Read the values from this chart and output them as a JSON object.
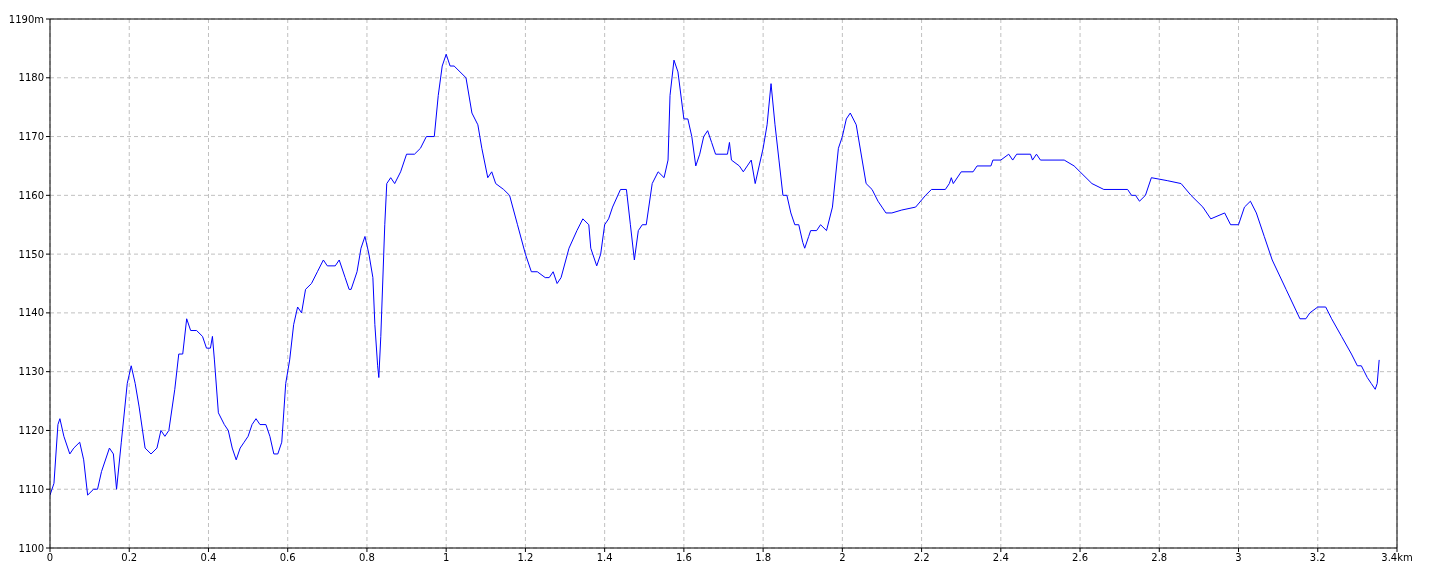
{
  "chart_data": {
    "type": "line",
    "grid": true,
    "line_style": "solid",
    "marker": "none",
    "xlim": [
      0,
      3.4
    ],
    "xticks": [
      0,
      0.2,
      0.4,
      0.6,
      0.8,
      1,
      1.2,
      1.4,
      1.6,
      1.8,
      2,
      2.2,
      2.4,
      2.6,
      2.8,
      3,
      3.2,
      {
        "value": 3.4,
        "label": "3.4km"
      }
    ],
    "ylim": [
      1100,
      1190
    ],
    "yticks": [
      1100,
      1110,
      1120,
      1130,
      1140,
      1150,
      1160,
      1170,
      1180,
      {
        "value": 1190,
        "label": "1190m"
      }
    ],
    "x": [
      0,
      0.01,
      0.02,
      0.025,
      0.035,
      0.05,
      0.06,
      0.075,
      0.085,
      0.095,
      0.11,
      0.12,
      0.13,
      0.15,
      0.16,
      0.168,
      0.18,
      0.195,
      0.205,
      0.215,
      0.225,
      0.24,
      0.255,
      0.27,
      0.28,
      0.29,
      0.3,
      0.315,
      0.325,
      0.335,
      0.345,
      0.355,
      0.37,
      0.385,
      0.395,
      0.405,
      0.41,
      0.415,
      0.425,
      0.44,
      0.45,
      0.46,
      0.47,
      0.48,
      0.49,
      0.5,
      0.51,
      0.52,
      0.53,
      0.545,
      0.555,
      0.565,
      0.575,
      0.585,
      0.595,
      0.605,
      0.615,
      0.625,
      0.635,
      0.645,
      0.66,
      0.675,
      0.69,
      0.7,
      0.72,
      0.73,
      0.745,
      0.755,
      0.76,
      0.775,
      0.785,
      0.795,
      0.805,
      0.815,
      0.82,
      0.827,
      0.83,
      0.835,
      0.845,
      0.85,
      0.86,
      0.87,
      0.885,
      0.9,
      0.92,
      0.935,
      0.95,
      0.97,
      0.98,
      0.99,
      1,
      1.01,
      1.02,
      1.05,
      1.065,
      1.08,
      1.09,
      1.105,
      1.115,
      1.125,
      1.145,
      1.16,
      1.18,
      1.2,
      1.215,
      1.23,
      1.25,
      1.26,
      1.27,
      1.28,
      1.29,
      1.31,
      1.33,
      1.345,
      1.36,
      1.365,
      1.38,
      1.39,
      1.4,
      1.41,
      1.42,
      1.44,
      1.455,
      1.465,
      1.475,
      1.485,
      1.495,
      1.505,
      1.52,
      1.535,
      1.55,
      1.56,
      1.565,
      1.575,
      1.585,
      1.6,
      1.61,
      1.62,
      1.63,
      1.64,
      1.65,
      1.66,
      1.67,
      1.68,
      1.71,
      1.715,
      1.72,
      1.74,
      1.75,
      1.76,
      1.77,
      1.78,
      1.79,
      1.8,
      1.81,
      1.82,
      1.83,
      1.84,
      1.85,
      1.86,
      1.87,
      1.88,
      1.89,
      1.9,
      1.905,
      1.915,
      1.92,
      1.935,
      1.945,
      1.96,
      1.975,
      1.99,
      2,
      2.01,
      2.02,
      2.035,
      2.06,
      2.075,
      2.09,
      2.1,
      2.11,
      2.125,
      2.15,
      2.185,
      2.21,
      2.225,
      2.26,
      2.27,
      2.275,
      2.28,
      2.3,
      2.33,
      2.34,
      2.375,
      2.38,
      2.4,
      2.42,
      2.43,
      2.44,
      2.475,
      2.48,
      2.49,
      2.5,
      2.56,
      2.585,
      2.6,
      2.615,
      2.63,
      2.66,
      2.72,
      2.73,
      2.74,
      2.75,
      2.765,
      2.78,
      2.82,
      2.855,
      2.88,
      2.91,
      2.93,
      2.965,
      2.98,
      3,
      3.015,
      3.03,
      3.045,
      3.065,
      3.085,
      3.12,
      3.155,
      3.17,
      3.18,
      3.2,
      3.22,
      3.235,
      3.26,
      3.285,
      3.3,
      3.31,
      3.325,
      3.335,
      3.345,
      3.35,
      3.355
    ],
    "series": [
      {
        "color": "#0000ff",
        "values": [
          1109,
          1111,
          1121,
          1122,
          1119,
          1116,
          1117,
          1118,
          1115,
          1109,
          1110,
          1110,
          1113,
          1117,
          1116,
          1110,
          1118,
          1128,
          1131,
          1128,
          1124,
          1117,
          1116,
          1117,
          1120,
          1119,
          1120,
          1127,
          1133,
          1133,
          1139,
          1137,
          1137,
          1136,
          1134,
          1134,
          1136,
          1132,
          1123,
          1121,
          1120,
          1117,
          1115,
          1117,
          1118,
          1119,
          1121,
          1122,
          1121,
          1121,
          1119,
          1116,
          1116,
          1118,
          1128,
          1132,
          1138,
          1141,
          1140,
          1144,
          1145,
          1147,
          1149,
          1148,
          1148,
          1149,
          1146,
          1144,
          1144,
          1147,
          1151,
          1153,
          1150,
          1146,
          1138,
          1131,
          1129,
          1136,
          1155,
          1162,
          1163,
          1162,
          1164,
          1167,
          1167,
          1168,
          1170,
          1170,
          1177,
          1182,
          1184,
          1182,
          1182,
          1180,
          1174,
          1172,
          1168,
          1163,
          1164,
          1162,
          1161,
          1160,
          1155,
          1150,
          1147,
          1147,
          1146,
          1146,
          1147,
          1145,
          1146,
          1151,
          1154,
          1156,
          1155,
          1151,
          1148,
          1150,
          1155,
          1156,
          1158,
          1161,
          1161,
          1155,
          1149,
          1154,
          1155,
          1155,
          1162,
          1164,
          1163,
          1166,
          1177,
          1183,
          1181,
          1173,
          1173,
          1170,
          1165,
          1167,
          1170,
          1171,
          1169,
          1167,
          1167,
          1169,
          1166,
          1165,
          1164,
          1165,
          1166,
          1162,
          1165,
          1168,
          1172,
          1179,
          1172,
          1166,
          1160,
          1160,
          1157,
          1155,
          1155,
          1152,
          1151,
          1153,
          1154,
          1154,
          1155,
          1154,
          1158,
          1168,
          1170,
          1173,
          1174,
          1172,
          1162,
          1161,
          1159,
          1158,
          1157,
          1157,
          1157.5,
          1158,
          1160,
          1161,
          1161,
          1162,
          1163,
          1162,
          1164,
          1164,
          1165,
          1165,
          1166,
          1166,
          1167,
          1166,
          1167,
          1167,
          1166,
          1167,
          1166,
          1166,
          1165,
          1164,
          1163,
          1162,
          1161,
          1161,
          1160,
          1160,
          1159,
          1160,
          1163,
          1162.5,
          1162,
          1160,
          1158,
          1156,
          1157,
          1155,
          1155,
          1158,
          1159,
          1157,
          1153,
          1149,
          1144,
          1139,
          1139,
          1140,
          1141,
          1141,
          1139,
          1136,
          1133,
          1131,
          1131,
          1129,
          1128,
          1127,
          1128,
          1132
        ]
      }
    ]
  }
}
